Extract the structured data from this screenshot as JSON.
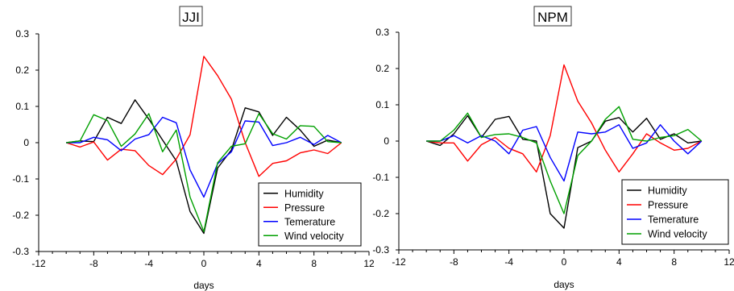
{
  "chart_data": [
    {
      "type": "line",
      "title": "JJI",
      "xlabel": "days",
      "ylabel": "",
      "xlim": [
        -12,
        12
      ],
      "ylim": [
        -0.3,
        0.3
      ],
      "x_ticks": [
        "-12",
        "-8",
        "-4",
        "0",
        "4",
        "8",
        "12"
      ],
      "y_ticks": [
        "0.3",
        "0.2",
        "0.1",
        "0",
        "-0.1",
        "-0.2",
        "-0.3"
      ],
      "legend_position": "bottom-right",
      "x": [
        -10,
        -9,
        -8,
        -7,
        -6,
        -5,
        -4,
        -3,
        -2,
        -1,
        0,
        1,
        2,
        3,
        4,
        5,
        6,
        7,
        8,
        9,
        10
      ],
      "series": [
        {
          "name": "Humidity",
          "color": "#000000",
          "values": [
            0,
            0.005,
            0.003,
            0.07,
            0.053,
            0.118,
            0.065,
            0.007,
            -0.05,
            -0.19,
            -0.25,
            -0.07,
            -0.02,
            0.096,
            0.085,
            0.02,
            0.07,
            0.035,
            -0.01,
            0.007,
            0
          ]
        },
        {
          "name": "Pressure",
          "color": "#ff0000",
          "values": [
            0,
            -0.012,
            0.002,
            -0.048,
            -0.018,
            -0.022,
            -0.063,
            -0.088,
            -0.045,
            0.022,
            0.238,
            0.185,
            0.12,
            0.0,
            -0.093,
            -0.057,
            -0.05,
            -0.028,
            -0.02,
            -0.03,
            0
          ]
        },
        {
          "name": "Temerature",
          "color": "#0000ff",
          "values": [
            0,
            0.0,
            0.015,
            0.008,
            -0.022,
            0.01,
            0.022,
            0.07,
            0.055,
            -0.075,
            -0.15,
            -0.058,
            -0.025,
            0.06,
            0.057,
            -0.008,
            0.0,
            0.015,
            -0.005,
            0.02,
            0
          ]
        },
        {
          "name": "Wind velocity",
          "color": "#00a000",
          "values": [
            0,
            0.005,
            0.077,
            0.061,
            -0.01,
            0.024,
            0.08,
            -0.025,
            0.035,
            -0.15,
            -0.245,
            -0.055,
            -0.01,
            -0.003,
            0.08,
            0.025,
            0.01,
            0.047,
            0.045,
            0.003,
            0
          ]
        }
      ]
    },
    {
      "type": "line",
      "title": "NPM",
      "xlabel": "days",
      "ylabel": "",
      "xlim": [
        -12,
        12
      ],
      "ylim": [
        -0.3,
        0.3
      ],
      "x_ticks": [
        "-12",
        "-8",
        "-4",
        "0",
        "4",
        "8",
        "12"
      ],
      "y_ticks": [
        "0.3",
        "0.2",
        "0.1",
        "0",
        "-0.1",
        "-0.2",
        "-0.3"
      ],
      "legend_position": "bottom-right",
      "x": [
        -10,
        -9,
        -8,
        -7,
        -6,
        -5,
        -4,
        -3,
        -2,
        -1,
        0,
        1,
        2,
        3,
        4,
        5,
        6,
        7,
        8,
        9,
        10
      ],
      "series": [
        {
          "name": "Humidity",
          "color": "#000000",
          "values": [
            0,
            -0.012,
            0.02,
            0.07,
            0.01,
            0.06,
            0.068,
            0.005,
            0.0,
            -0.2,
            -0.24,
            -0.018,
            0.0,
            0.055,
            0.065,
            0.025,
            0.063,
            0.005,
            0.02,
            -0.005,
            0
          ]
        },
        {
          "name": "Pressure",
          "color": "#ff0000",
          "values": [
            0,
            -0.005,
            -0.005,
            -0.055,
            -0.01,
            0.01,
            -0.02,
            -0.035,
            -0.085,
            0.015,
            0.21,
            0.11,
            0.05,
            -0.025,
            -0.085,
            -0.035,
            0.02,
            -0.005,
            -0.025,
            -0.02,
            0
          ]
        },
        {
          "name": "Temerature",
          "color": "#0000ff",
          "values": [
            0,
            0.0,
            0.015,
            -0.005,
            0.015,
            0.0,
            -0.035,
            0.03,
            0.04,
            -0.045,
            -0.11,
            0.025,
            0.02,
            0.025,
            0.045,
            -0.02,
            -0.005,
            0.045,
            0.0,
            -0.035,
            0
          ]
        },
        {
          "name": "Wind velocity",
          "color": "#00a000",
          "values": [
            0,
            0.0,
            0.03,
            0.077,
            0.01,
            0.018,
            0.02,
            0.01,
            -0.005,
            -0.11,
            -0.2,
            -0.04,
            0.0,
            0.06,
            0.095,
            0.005,
            0.0,
            0.01,
            0.015,
            0.032,
            0
          ]
        }
      ]
    }
  ]
}
